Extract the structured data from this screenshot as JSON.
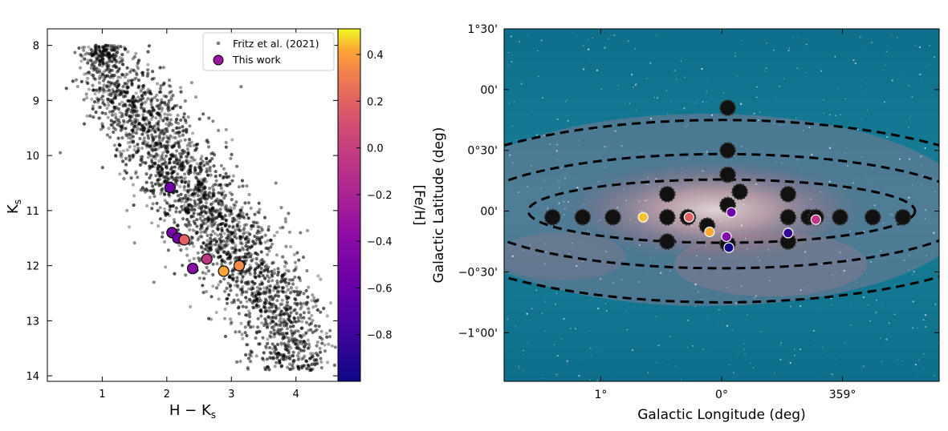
{
  "chart_data": [
    {
      "type": "scatter",
      "xlabel": "H − K",
      "xlabel_sub": "s",
      "ylabel": "K",
      "ylabel_sub": "s",
      "xlim": [
        0.15,
        4.65
      ],
      "ylim": [
        14.1,
        7.7
      ],
      "xticks": [
        1,
        2,
        3,
        4
      ],
      "yticks": [
        8,
        9,
        10,
        11,
        12,
        13,
        14
      ],
      "legend": {
        "position": "top-right",
        "entries": [
          {
            "label": "Fritz et al. (2021)",
            "marker": "gray-dot"
          },
          {
            "label": "This work",
            "marker": "purple-circle"
          }
        ]
      },
      "background_series": {
        "name": "Fritz et al. (2021)",
        "color": "#000000",
        "n_points": 2600,
        "envelope_note": "diagonal band from about (0.8, 8.0) to (4.5, 13.6)",
        "outliers": [
          [
            0.9,
            8.0
          ],
          [
            0.35,
            9.95
          ],
          [
            3.15,
            8.75
          ],
          [
            4.45,
            13.55
          ],
          [
            4.2,
            12.85
          ]
        ]
      },
      "series": [
        {
          "name": "This work",
          "points": [
            {
              "x": 2.05,
              "y": 10.58,
              "feh": -0.55
            },
            {
              "x": 2.08,
              "y": 11.4,
              "feh": -0.5
            },
            {
              "x": 2.17,
              "y": 11.5,
              "feh": -0.55
            },
            {
              "x": 2.27,
              "y": 11.53,
              "feh": 0.2
            },
            {
              "x": 2.4,
              "y": 12.05,
              "feh": -0.4
            },
            {
              "x": 2.62,
              "y": 11.88,
              "feh": -0.05
            },
            {
              "x": 2.88,
              "y": 12.1,
              "feh": 0.42
            },
            {
              "x": 3.12,
              "y": 12.0,
              "feh": 0.35
            }
          ]
        }
      ],
      "colorbar": {
        "label": "[Fe/H]",
        "range": [
          -1.0,
          0.51
        ],
        "ticks": [
          0.4,
          0.2,
          0.0,
          -0.2,
          -0.4,
          -0.6,
          -0.8
        ],
        "tick_labels": [
          "0.4",
          "0.2",
          "0.0",
          "−0.2",
          "−0.4",
          "−0.6",
          "−0.8"
        ],
        "colormap": "plasma"
      }
    },
    {
      "type": "scatter",
      "background": "Galactic Center infrared mosaic",
      "xlabel": "Galactic Longitude (deg)",
      "ylabel": "Galactic Latitude (deg)",
      "xlim": [
        1.8,
        -1.8
      ],
      "ylim": [
        -1.4,
        1.5
      ],
      "xticks": [
        1,
        0,
        -1
      ],
      "xtick_labels": [
        "1°",
        "0°",
        "359°"
      ],
      "yticks": [
        1.5,
        1.0,
        0.5,
        0.0,
        -0.5,
        -1.0
      ],
      "ytick_labels": [
        "1°30'",
        "00'",
        "0°30'",
        "00'",
        "−0°30'",
        "−1°00'"
      ],
      "ellipses": [
        {
          "center": [
            0.0,
            0.0
          ],
          "semi_l": 1.6,
          "semi_b": 0.26
        },
        {
          "center": [
            0.0,
            0.0
          ],
          "semi_l": 2.1,
          "semi_b": 0.47
        },
        {
          "center": [
            0.0,
            0.0
          ],
          "semi_l": 2.6,
          "semi_b": 0.75
        }
      ],
      "fields": [
        {
          "l": 1.4,
          "b": -0.05
        },
        {
          "l": 1.15,
          "b": -0.05
        },
        {
          "l": 0.9,
          "b": -0.05
        },
        {
          "l": 0.45,
          "b": -0.05
        },
        {
          "l": 0.28,
          "b": -0.05
        },
        {
          "l": -0.55,
          "b": -0.05
        },
        {
          "l": -0.72,
          "b": -0.05
        },
        {
          "l": -0.78,
          "b": -0.05
        },
        {
          "l": -0.98,
          "b": -0.05
        },
        {
          "l": -1.25,
          "b": -0.05
        },
        {
          "l": -1.5,
          "b": -0.05
        },
        {
          "l": 0.45,
          "b": 0.14
        },
        {
          "l": -0.55,
          "b": 0.14
        },
        {
          "l": -0.15,
          "b": 0.16
        },
        {
          "l": -0.05,
          "b": 0.3
        },
        {
          "l": -0.05,
          "b": 0.5
        },
        {
          "l": -0.05,
          "b": 0.85
        },
        {
          "l": 0.45,
          "b": -0.25
        },
        {
          "l": -0.55,
          "b": -0.25
        },
        {
          "l": -0.05,
          "b": -0.27
        },
        {
          "l": 0.12,
          "b": -0.12
        },
        {
          "l": -0.05,
          "b": 0.05
        }
      ],
      "stars": [
        {
          "l": -0.78,
          "b": -0.07,
          "feh": -0.05
        },
        {
          "l": -0.55,
          "b": -0.18,
          "feh": -0.85
        },
        {
          "l": -0.08,
          "b": -0.01,
          "feh": -0.55
        },
        {
          "l": -0.04,
          "b": -0.21,
          "feh": -0.45
        },
        {
          "l": -0.06,
          "b": -0.3,
          "feh": -0.98
        },
        {
          "l": 0.1,
          "b": -0.17,
          "feh": 0.42
        },
        {
          "l": 0.27,
          "b": -0.05,
          "feh": 0.2
        },
        {
          "l": 0.65,
          "b": -0.05,
          "feh": 0.45
        }
      ]
    }
  ]
}
